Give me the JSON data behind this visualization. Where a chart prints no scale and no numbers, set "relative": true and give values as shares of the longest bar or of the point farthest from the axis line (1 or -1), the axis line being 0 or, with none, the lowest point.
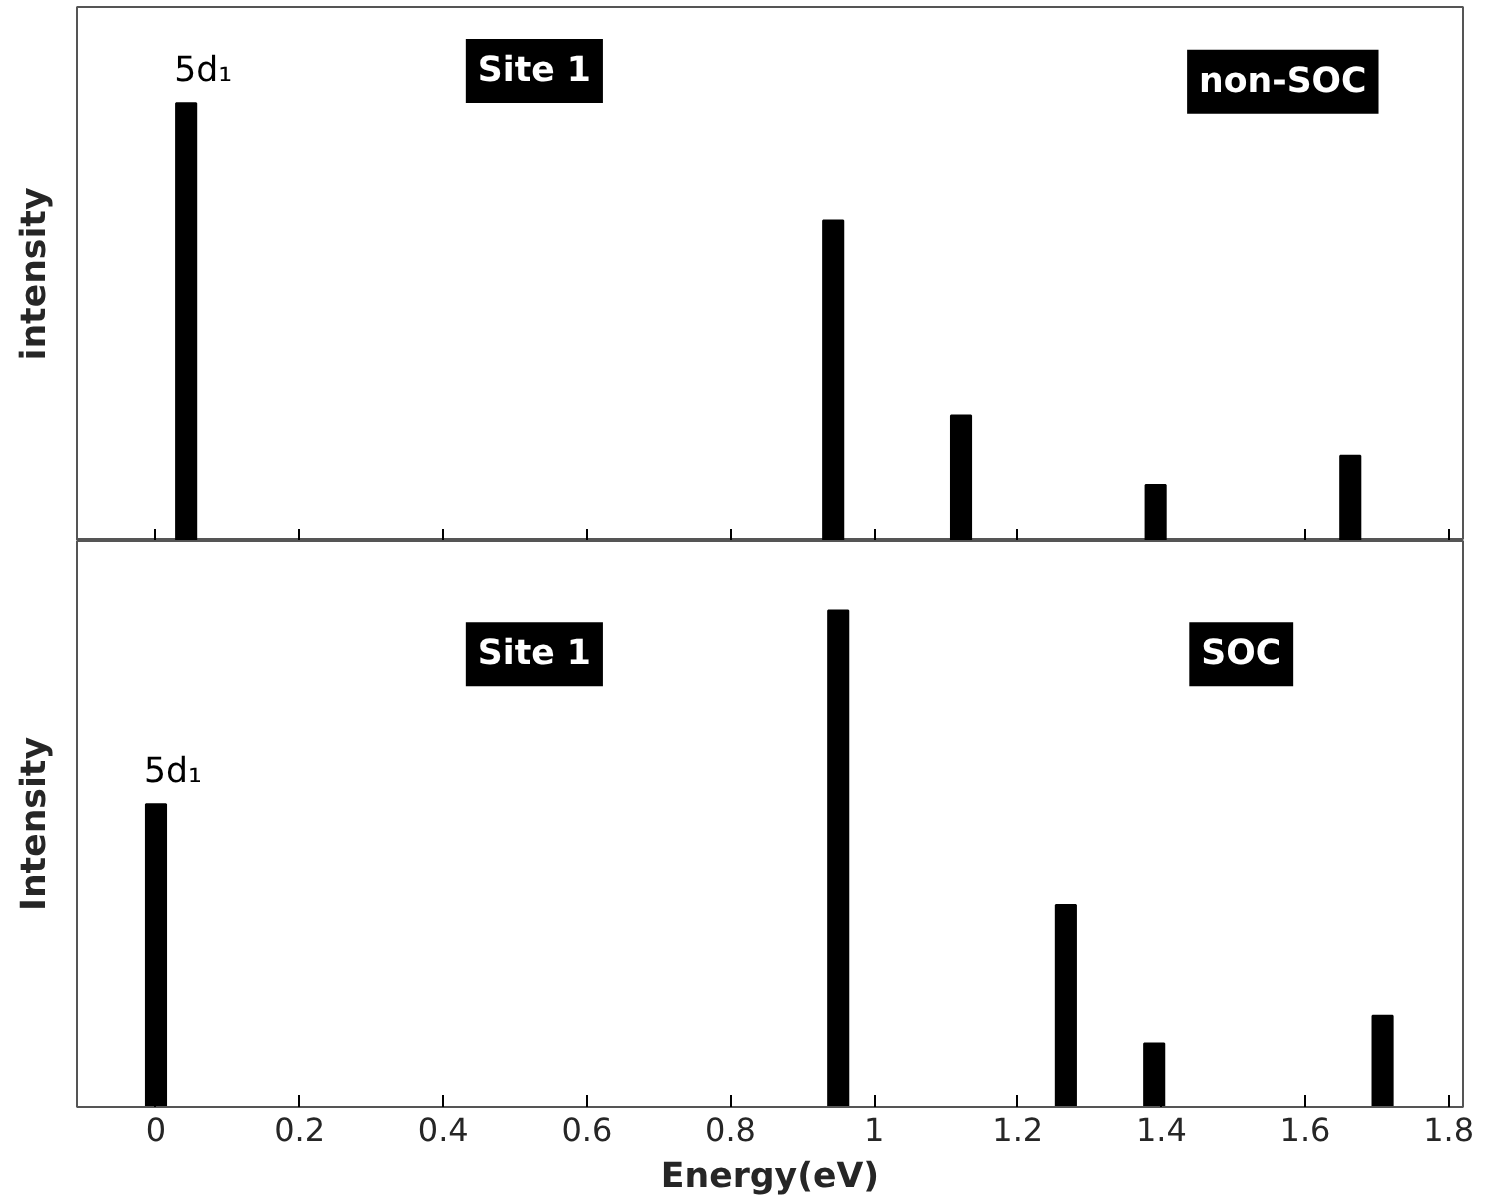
{
  "chart_data": [
    {
      "type": "bar",
      "relative": true,
      "ylabel": "intensity",
      "x": [
        0.042,
        0.943,
        1.121,
        1.392,
        1.663
      ],
      "values": [
        1,
        0.732,
        0.287,
        0.128,
        0.195
      ],
      "color": "#000000",
      "xlim": [
        -0.11,
        1.82
      ],
      "xticks": [
        0,
        0.2,
        0.4,
        0.6,
        0.8,
        1,
        1.2,
        1.4,
        1.6,
        1.8
      ],
      "tick_labels": false,
      "grid": false,
      "annotations": [
        {
          "text": "5d₁",
          "x": 0.042,
          "y": 1
        },
        "Site 1",
        "non-SOC"
      ]
    },
    {
      "type": "bar",
      "relative": true,
      "xlabel": "Energy(eV)",
      "ylabel": "Intensity",
      "x": [
        0.0,
        0.95,
        1.267,
        1.39,
        1.708
      ],
      "values": [
        0.61,
        1,
        0.407,
        0.128,
        0.184
      ],
      "color": "#000000",
      "xlim": [
        -0.11,
        1.82
      ],
      "xticks": [
        0,
        0.2,
        0.4,
        0.6,
        0.8,
        1,
        1.2,
        1.4,
        1.6,
        1.8
      ],
      "tick_labels": "x",
      "grid": false,
      "annotations": [
        {
          "text": "5d₁",
          "x": 0.0,
          "y": 0.61
        },
        "Site 1",
        "SOC"
      ]
    }
  ]
}
